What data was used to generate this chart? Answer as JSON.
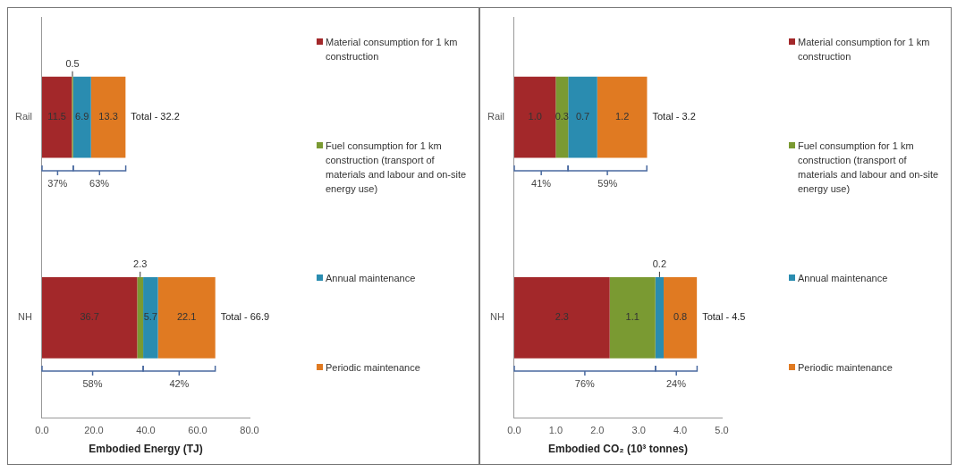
{
  "chart_data": [
    {
      "type": "bar",
      "orientation": "horizontal",
      "stacked": true,
      "categories": [
        "Rail",
        "NH"
      ],
      "series": [
        {
          "name": "Material consumption for 1 km construction",
          "color": "#a3282a",
          "values": [
            11.5,
            36.7
          ]
        },
        {
          "name": "Fuel consumption for 1 km construction (transport of materials and labour and on-site energy use)",
          "color": "#7a9a32",
          "values": [
            0.5,
            2.3
          ]
        },
        {
          "name": "Annual maintenance",
          "color": "#2a8cb0",
          "values": [
            6.9,
            5.7
          ]
        },
        {
          "name": "Periodic maintenance",
          "color": "#e07a22",
          "values": [
            13.3,
            22.1
          ]
        }
      ],
      "data_labels": true,
      "annotations": [
        "37%",
        "63%",
        "58%",
        "42%",
        "Total - 32.2",
        "Total - 66.9"
      ],
      "xlabel": "Embodied Energy (TJ)",
      "xlim": [
        0,
        80
      ],
      "xticks": [
        {
          "value": 0,
          "label": "0.0"
        },
        {
          "value": 20,
          "label": "20.0"
        },
        {
          "value": 40,
          "label": "40.0"
        },
        {
          "value": 60,
          "label": "60.0"
        },
        {
          "value": 80,
          "label": "80.0"
        }
      ],
      "legend": "right"
    },
    {
      "type": "bar",
      "orientation": "horizontal",
      "stacked": true,
      "categories": [
        "Rail",
        "NH"
      ],
      "series": [
        {
          "name": "Material consumption for 1 km construction",
          "color": "#a3282a",
          "values": [
            1.0,
            2.3
          ],
          "value_labels": [
            "1.0",
            "2.3"
          ]
        },
        {
          "name": "Fuel consumption for 1 km construction (transport of materials and labour and on-site energy use)",
          "color": "#7a9a32",
          "values": [
            0.3,
            1.1
          ]
        },
        {
          "name": "Annual maintenance",
          "color": "#2a8cb0",
          "values": [
            0.7,
            0.2
          ]
        },
        {
          "name": "Periodic maintenance",
          "color": "#e07a22",
          "values": [
            1.2,
            0.8
          ]
        }
      ],
      "data_labels": true,
      "annotations": [
        "41%",
        "59%",
        "76%",
        "24%",
        "Total - 3.2",
        "Total - 4.5"
      ],
      "xlabel": "Embodied CO₂ (10³ tonnes)",
      "xlim": [
        0,
        5
      ],
      "xticks": [
        {
          "value": 0,
          "label": "0.0"
        },
        {
          "value": 1,
          "label": "1.0"
        },
        {
          "value": 2,
          "label": "2.0"
        },
        {
          "value": 3,
          "label": "3.0"
        },
        {
          "value": 4,
          "label": "4.0"
        },
        {
          "value": 5,
          "label": "5.0"
        }
      ],
      "legend": "right"
    }
  ]
}
